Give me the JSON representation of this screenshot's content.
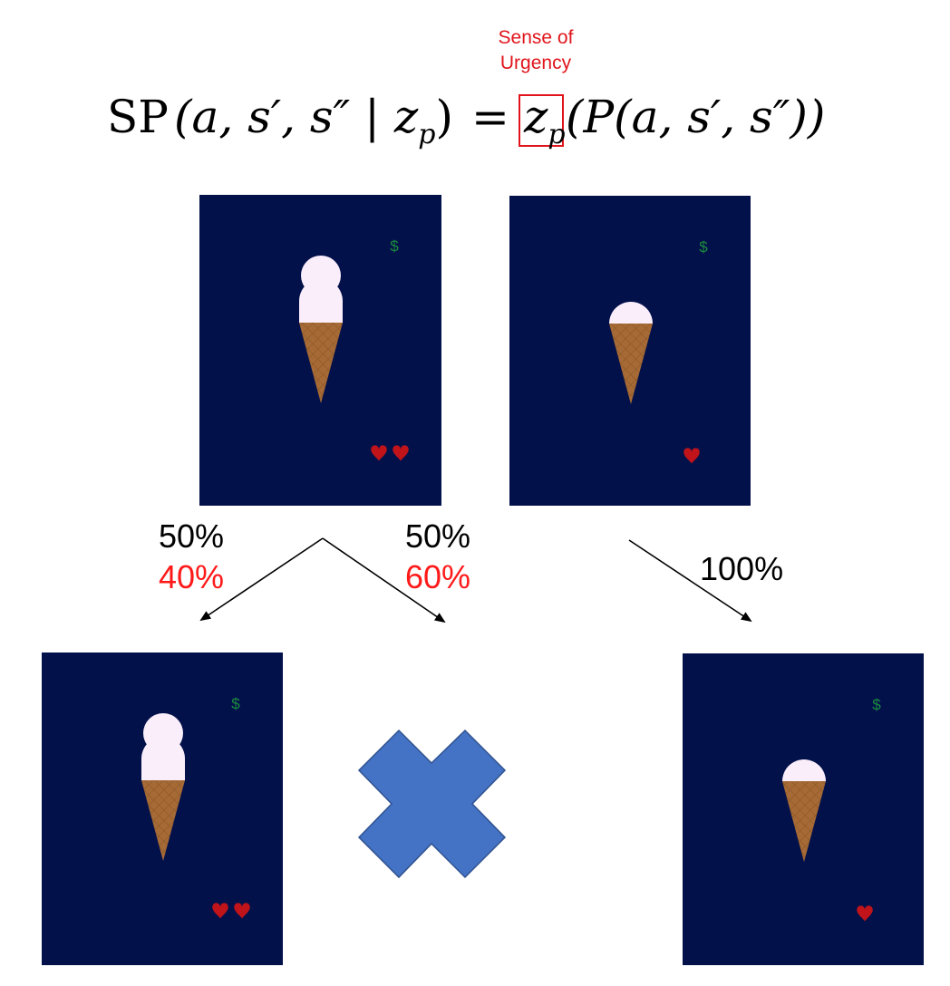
{
  "annotation": {
    "line1": "Sense of",
    "line2": "Urgency",
    "color": "#e0151c"
  },
  "equation": {
    "op_name": "SP",
    "lhs_args": "(a, s′, s″ | z",
    "lhs_sub": "p",
    "lhs_close": ")",
    "equals": "=",
    "boxed_var": "z",
    "boxed_sub": "p",
    "rhs": "(P(a, s′, s″))"
  },
  "percentages": {
    "left_default": "50%",
    "left_urgency": "40%",
    "right_default": "50%",
    "right_urgency": "60%",
    "single": "100%"
  },
  "colors": {
    "panel_bg": "#03114a",
    "dollar": "#1a8c3e",
    "heart": "#c0131a",
    "scoop": "#fbeefb",
    "cone": "#a56a35",
    "cross": "#4472c4",
    "cross_stroke": "#2f528f",
    "urgency_text": "#ff1a1a"
  },
  "states": {
    "top_left": {
      "dollar": "$",
      "scoops": 2,
      "hearts": 2
    },
    "top_right": {
      "dollar": "$",
      "scoops": 1,
      "hearts": 1
    },
    "bottom_left": {
      "dollar": "$",
      "scoops": 2,
      "hearts": 2
    },
    "bottom_right": {
      "dollar": "$",
      "scoops": 1,
      "hearts": 1
    }
  },
  "eliminated_outcome_icon": "x-cross-icon"
}
